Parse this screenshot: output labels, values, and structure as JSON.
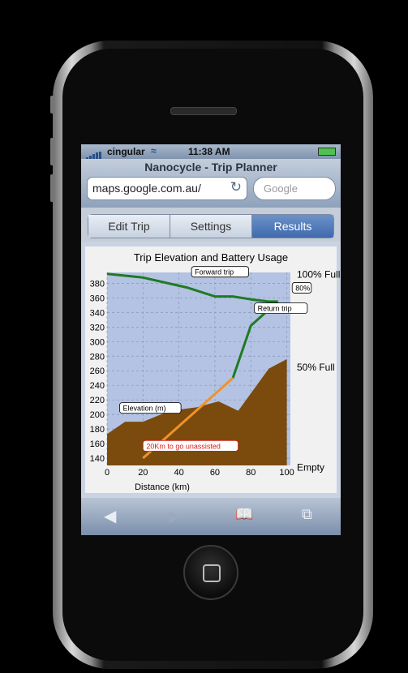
{
  "status_bar": {
    "carrier": "cingular",
    "time": "11:38 AM"
  },
  "browser": {
    "page_title": "Nanocycle - Trip Planner",
    "url": "maps.google.com.au/",
    "search_placeholder": "Google"
  },
  "tabs": [
    {
      "label": "Edit Trip",
      "selected": false
    },
    {
      "label": "Settings",
      "selected": false
    },
    {
      "label": "Results",
      "selected": true
    }
  ],
  "chart_data": {
    "type": "area",
    "title": "Trip Elevation and Battery Usage",
    "xlabel": "Distance (km)",
    "ylabel": "",
    "xlim": [
      0,
      102
    ],
    "ylim": [
      130,
      395
    ],
    "x_ticks": [
      0,
      20,
      40,
      60,
      80,
      100
    ],
    "y_ticks": [
      140,
      160,
      180,
      200,
      220,
      240,
      260,
      280,
      300,
      320,
      340,
      360,
      380
    ],
    "right_axis_labels": [
      "100% Full",
      "50% Full",
      "Empty"
    ],
    "grid": true,
    "series": [
      {
        "name": "Elevation (m)",
        "type": "area",
        "color": "#7a4b0d",
        "x": [
          0,
          10,
          20,
          35,
          50,
          62,
          73,
          90,
          100
        ],
        "y": [
          173,
          190,
          190,
          205,
          210,
          218,
          205,
          263,
          276
        ]
      },
      {
        "name": "Forward trip",
        "type": "line",
        "color": "#1f7a23",
        "x": [
          0,
          20,
          45,
          60,
          70,
          80,
          90,
          95
        ],
        "y": [
          393,
          388,
          374,
          362,
          362,
          358,
          355,
          355
        ]
      },
      {
        "name": "Return trip",
        "type": "line",
        "color": "#1f7a23",
        "x": [
          70,
          80,
          95
        ],
        "y": [
          250,
          322,
          355
        ]
      },
      {
        "name": "",
        "type": "line",
        "color": "#f0922a",
        "x": [
          20,
          70
        ],
        "y": [
          140,
          250
        ]
      }
    ],
    "annotations": [
      {
        "text": "Forward trip",
        "x": 47,
        "y": 392
      },
      {
        "text": "80%",
        "x": 103,
        "y": 370
      },
      {
        "text": "Return trip",
        "x": 82,
        "y": 342
      },
      {
        "text": "Elevation (m)",
        "x": 7,
        "y": 205
      },
      {
        "text": "20Km to go unassisted",
        "x": 20,
        "y": 153
      }
    ],
    "colors": {
      "plot_background": "#b4c3e3",
      "elevation": "#7a4b0d",
      "battery_line": "#1f7a23",
      "unassisted_line": "#f0922a",
      "warning_text": "#d8201a"
    }
  },
  "toolbar": {
    "back": "◀",
    "forward": "▶",
    "bookmarks": "bookmarks",
    "pages": "pages"
  }
}
